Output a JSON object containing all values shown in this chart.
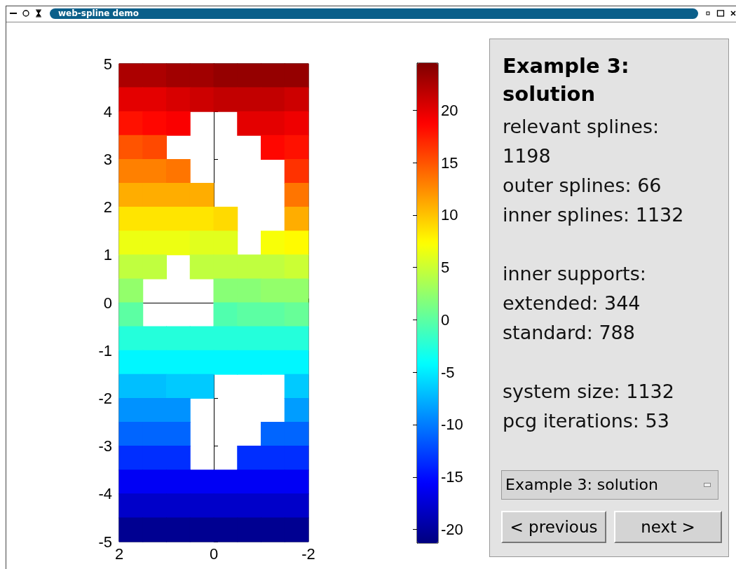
{
  "chart_data": {
    "type": "scatter",
    "title": "Example 3: solution",
    "marker": "square",
    "annotations": [
      "web-spline demo",
      "relevant splines: 1198",
      "outer splines: 66",
      "inner splines: 1132",
      "inner supports:",
      "extended: 344",
      "standard: 788",
      "system size: 1132",
      "pcg iterations: 53",
      "Example 3: solution",
      "< previous",
      "next >"
    ],
    "x": [
      1.75,
      1.25,
      0.75,
      0.25,
      -0.25,
      -0.75,
      -1.25,
      -1.75,
      1.75,
      1.25,
      0.75,
      0.25,
      -0.25,
      -0.75,
      -1.25,
      -1.75,
      1.75,
      1.25,
      0.75,
      -0.75,
      -1.25,
      -1.75,
      1.75,
      1.25,
      -1.25,
      -1.75,
      1.75,
      1.25,
      0.75,
      -1.75,
      1.75,
      1.25,
      0.75,
      0.25,
      -1.75,
      1.75,
      1.25,
      0.75,
      0.25,
      -0.25,
      -1.75,
      1.75,
      1.25,
      0.75,
      0.25,
      -0.25,
      -1.25,
      -1.75,
      1.75,
      1.25,
      0.25,
      -0.25,
      -0.75,
      -1.25,
      -1.75,
      1.75,
      -0.25,
      -0.75,
      -1.25,
      -1.75,
      1.75,
      -0.25,
      -0.75,
      -1.25,
      -1.75,
      1.75,
      1.25,
      0.75,
      0.25,
      -0.25,
      -0.75,
      -1.25,
      -1.75,
      1.75,
      1.25,
      0.75,
      0.25,
      -0.25,
      -0.75,
      -1.25,
      -1.75,
      1.75,
      1.25,
      0.75,
      0.25,
      -1.75,
      1.75,
      1.25,
      0.75,
      -1.75,
      1.75,
      1.25,
      0.75,
      -1.25,
      -1.75,
      1.75,
      1.25,
      0.75,
      -0.75,
      -1.25,
      -1.75,
      1.75,
      1.25,
      0.75,
      0.25,
      -0.25,
      -0.75,
      -1.25,
      -1.75,
      1.75,
      1.25,
      0.75,
      0.25,
      -0.25,
      -0.75,
      -1.25,
      -1.75,
      1.75,
      1.25,
      0.75,
      0.25,
      -0.25,
      -0.75,
      -1.25,
      -1.75
    ],
    "values": [
      4.75,
      4.75,
      4.75,
      4.75,
      4.75,
      4.75,
      4.75,
      4.75,
      4.25,
      4.25,
      4.25,
      4.25,
      4.25,
      4.25,
      4.25,
      4.25,
      3.75,
      3.75,
      3.75,
      3.75,
      3.75,
      3.75,
      3.25,
      3.25,
      3.25,
      3.25,
      2.75,
      2.75,
      2.75,
      2.75,
      2.25,
      2.25,
      2.25,
      2.25,
      2.25,
      1.75,
      1.75,
      1.75,
      1.75,
      1.75,
      1.75,
      1.25,
      1.25,
      1.25,
      1.25,
      1.25,
      1.25,
      1.25,
      0.75,
      0.75,
      0.75,
      0.75,
      0.75,
      0.75,
      0.75,
      0.25,
      0.25,
      0.25,
      0.25,
      0.25,
      -0.25,
      -0.25,
      -0.25,
      -0.25,
      -0.25,
      -0.75,
      -0.75,
      -0.75,
      -0.75,
      -0.75,
      -0.75,
      -0.75,
      -0.75,
      -1.25,
      -1.25,
      -1.25,
      -1.25,
      -1.25,
      -1.25,
      -1.25,
      -1.25,
      -1.75,
      -1.75,
      -1.75,
      -1.75,
      -1.75,
      -2.25,
      -2.25,
      -2.25,
      -2.25,
      -2.75,
      -2.75,
      -2.75,
      -2.75,
      -2.75,
      -3.25,
      -3.25,
      -3.25,
      -3.25,
      -3.25,
      -3.25,
      -3.75,
      -3.75,
      -3.75,
      -3.75,
      -3.75,
      -3.75,
      -3.75,
      -3.75,
      -4.25,
      -4.25,
      -4.25,
      -4.25,
      -4.25,
      -4.25,
      -4.25,
      -4.25,
      -4.75,
      -4.75,
      -4.75,
      -4.75,
      -4.75,
      -4.75,
      -4.75,
      -4.75
    ],
    "cvalues": [
      22.5,
      22.5,
      23,
      23,
      23.5,
      23.5,
      23.5,
      23.5,
      20,
      20,
      20.5,
      21,
      21.5,
      21.5,
      21.5,
      21,
      18,
      18.5,
      19,
      20,
      20,
      19.5,
      15,
      15.5,
      18.5,
      18,
      13,
      13,
      13.5,
      16.5,
      11,
      11,
      11,
      11,
      13.5,
      8.5,
      8.5,
      8.5,
      8.5,
      9,
      11,
      6.5,
      6.5,
      6.5,
      6,
      6,
      7,
      7.5,
      4.5,
      4.5,
      4.5,
      4.5,
      4.5,
      4.5,
      5,
      2.5,
      2,
      2,
      2.5,
      2.5,
      0,
      -0.5,
      0,
      0,
      0.5,
      -2.5,
      -2.5,
      -2.5,
      -2.5,
      -2.5,
      -2.5,
      -2.5,
      -2.5,
      -4.5,
      -4.5,
      -4.5,
      -4.5,
      -4.5,
      -4.5,
      -4.5,
      -4.5,
      -7,
      -7,
      -6.5,
      -6.5,
      -6.5,
      -9,
      -9,
      -9,
      -8.5,
      -11,
      -11,
      -11,
      -11,
      -11,
      -13.5,
      -13.5,
      -13.5,
      -13.5,
      -13.5,
      -13.5,
      -16,
      -16,
      -16,
      -16,
      -16,
      -16,
      -16,
      -16,
      -18,
      -18,
      -18,
      -18,
      -18,
      -18,
      -18,
      -18,
      -20.5,
      -20.5,
      -20.5,
      -20.5,
      -20.5,
      -20.5,
      -20.5,
      -20.5
    ],
    "xlim": [
      2,
      -2
    ],
    "xticks": [
      2,
      0,
      -2
    ],
    "ylim": [
      -5,
      5
    ],
    "yticks": [
      -5,
      -4,
      -3,
      -2,
      -1,
      0,
      1,
      2,
      3,
      4,
      5
    ],
    "clim": [
      -21.3,
      24.5
    ],
    "cticks": [
      -20,
      -15,
      -10,
      -5,
      0,
      5,
      10,
      15,
      20
    ]
  }
}
